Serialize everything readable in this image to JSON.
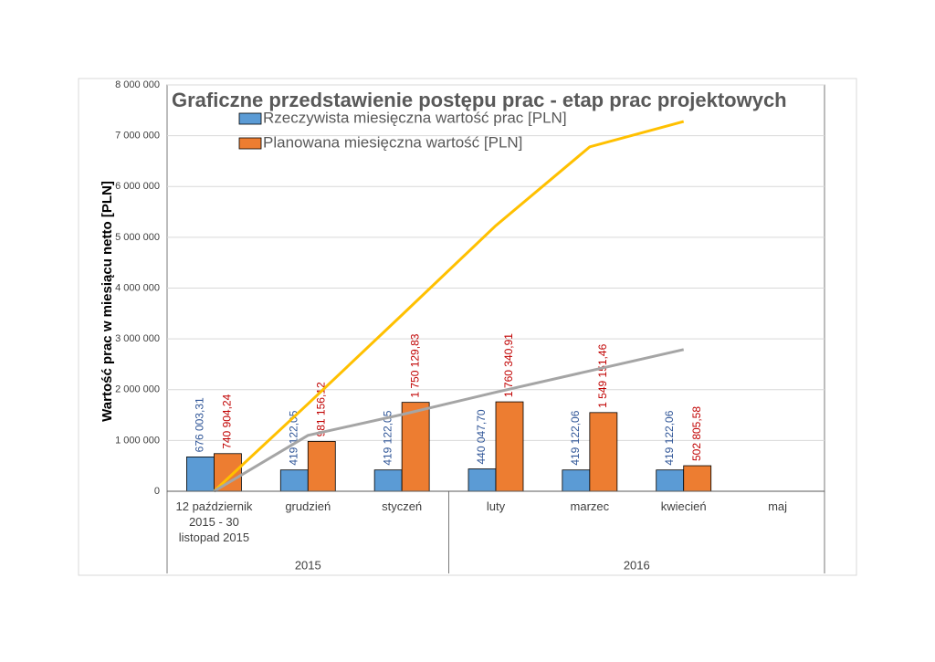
{
  "chart_data": {
    "type": "bar",
    "title": "Graficzne przedstawienie postępu prac - etap prac projektowych",
    "y_label": "Wartość prac w miesiącu netto [PLN]",
    "categories": [
      "12 październik 2015 - 30 listopad 2015",
      "grudzień",
      "styczeń",
      "luty",
      "marzec",
      "kwiecień",
      "maj"
    ],
    "groups": [
      {
        "label": "2015",
        "span": 3
      },
      {
        "label": "2016",
        "span": 4
      }
    ],
    "series": [
      {
        "name": "Rzeczywista miesięczna wartość prac [PLN]",
        "color": "#5b9bd5",
        "label_color": "#2f5597",
        "values": [
          676003.31,
          419122.05,
          419122.05,
          440047.7,
          419122.06,
          419122.06,
          null
        ],
        "value_labels": [
          "676 003,31",
          "419 122,05",
          "419 122,05",
          "440 047,70",
          "419 122,06",
          "419 122,06",
          null
        ]
      },
      {
        "name": "Planowana miesięczna wartość [PLN]",
        "color": "#ed7d31",
        "label_color": "#c00000",
        "values": [
          740904.24,
          981156.12,
          1750129.83,
          1760340.91,
          1549151.46,
          502805.58,
          null
        ],
        "value_labels": [
          "740 904,24",
          "981 156,12",
          "1 750 129,83",
          "1 760 340,91",
          "1 549 151,46",
          "502 805,58",
          null
        ]
      }
    ],
    "lines": [
      {
        "color": "#ffc000",
        "values": [
          0,
          1720000,
          3470000,
          5230000,
          6780000,
          7280000,
          null
        ]
      },
      {
        "color": "#a5a5a5",
        "values": [
          0,
          1100000,
          1510000,
          1950000,
          2370000,
          2790000,
          null
        ]
      }
    ],
    "ylim": [
      0,
      8000000
    ],
    "yticks": [
      0,
      {
        "value": 1000000,
        "label": "1 000 000"
      },
      {
        "value": 2000000,
        "label": "2 000 000"
      },
      {
        "value": 3000000,
        "label": "3 000 000"
      },
      {
        "value": 4000000,
        "label": "4 000 000"
      },
      {
        "value": 5000000,
        "label": "5 000 000"
      },
      {
        "value": 6000000,
        "label": "6 000 000"
      },
      {
        "value": 7000000,
        "label": "7 000 000"
      },
      {
        "value": 8000000,
        "label": "8 000 000"
      }
    ],
    "grid": true
  }
}
